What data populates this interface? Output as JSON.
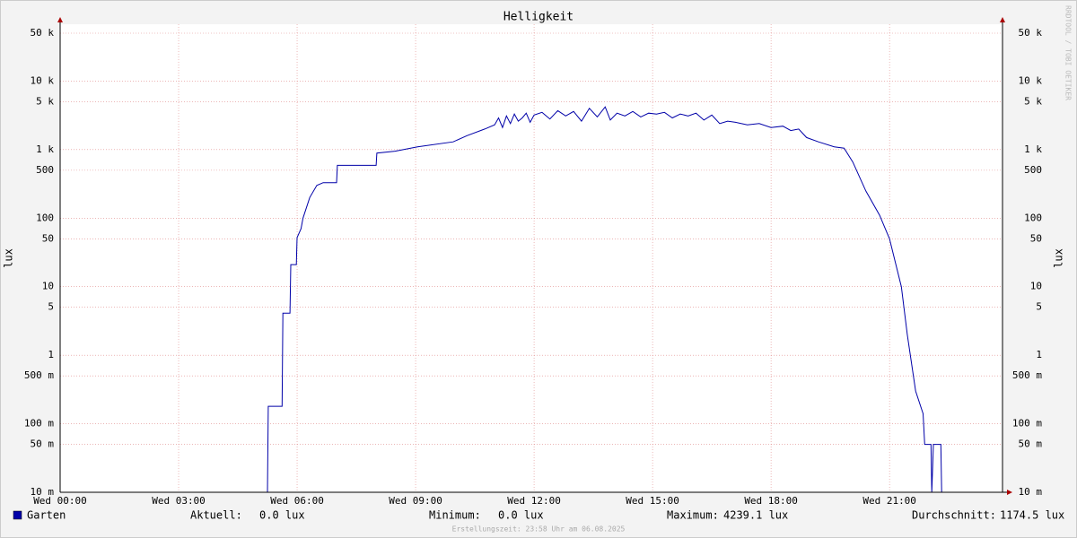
{
  "chart_data": {
    "type": "line",
    "title": "Helligkeit",
    "y_label": "lux",
    "log_scale": true,
    "grid": true,
    "watermark": "RRDTOOL / TOBI OETIKER",
    "footer": "Erstellungszeit: 23:58 Uhr am 06.08.2025",
    "xlim": [
      0,
      23.86
    ],
    "xticks": [
      {
        "value": 0,
        "label": "Wed 00:00"
      },
      {
        "value": 3,
        "label": "Wed 03:00"
      },
      {
        "value": 6,
        "label": "Wed 06:00"
      },
      {
        "value": 9,
        "label": "Wed 09:00"
      },
      {
        "value": 12,
        "label": "Wed 12:00"
      },
      {
        "value": 15,
        "label": "Wed 15:00"
      },
      {
        "value": 18,
        "label": "Wed 18:00"
      },
      {
        "value": 21,
        "label": "Wed 21:00"
      }
    ],
    "ylim": [
      0.01,
      67600
    ],
    "yticks": [
      {
        "value": 0.01,
        "label": "10 m"
      },
      {
        "value": 0.05,
        "label": "50 m"
      },
      {
        "value": 0.1,
        "label": "100 m"
      },
      {
        "value": 0.5,
        "label": "500 m"
      },
      1,
      5,
      10,
      50,
      100,
      500,
      {
        "value": 1000,
        "label": "1 k"
      },
      {
        "value": 5000,
        "label": "5 k"
      },
      {
        "value": 10000,
        "label": "10 k"
      },
      {
        "value": 50000,
        "label": "50 k"
      }
    ],
    "x": [
      0,
      5.25,
      5.27,
      5.62,
      5.64,
      5.82,
      5.84,
      5.98,
      6.0,
      6.1,
      6.15,
      6.32,
      6.5,
      6.66,
      7.0,
      7.02,
      8.0,
      8.02,
      8.48,
      9.05,
      9.95,
      10.3,
      10.75,
      11.0,
      11.1,
      11.2,
      11.3,
      11.4,
      11.5,
      11.6,
      11.7,
      11.8,
      11.9,
      12.0,
      12.2,
      12.4,
      12.6,
      12.8,
      13.0,
      13.2,
      13.4,
      13.6,
      13.8,
      13.93,
      14.1,
      14.3,
      14.5,
      14.7,
      14.9,
      15.1,
      15.3,
      15.5,
      15.7,
      15.9,
      16.1,
      16.3,
      16.5,
      16.7,
      16.9,
      17.1,
      17.4,
      17.7,
      18.0,
      18.3,
      18.5,
      18.7,
      18.9,
      19.2,
      19.6,
      19.85,
      20.07,
      20.4,
      20.75,
      21.0,
      21.3,
      21.45,
      21.66,
      21.85,
      21.89,
      21.91,
      22.05,
      22.07,
      22.11,
      22.3,
      22.32,
      23.86
    ],
    "series": [
      {
        "name": "Garten",
        "color": "#0000a8",
        "values": [
          0,
          0,
          0.18,
          0.18,
          4.1,
          4.1,
          21,
          21,
          52,
          70,
          100,
          200,
          300,
          330,
          330,
          590,
          590,
          890,
          950,
          1100,
          1300,
          1600,
          2000,
          2300,
          2900,
          2100,
          3100,
          2400,
          3300,
          2600,
          2900,
          3400,
          2500,
          3200,
          3500,
          2800,
          3700,
          3100,
          3600,
          2600,
          4000,
          3000,
          4200,
          2700,
          3400,
          3100,
          3600,
          3000,
          3400,
          3300,
          3500,
          2900,
          3300,
          3100,
          3400,
          2700,
          3200,
          2400,
          2600,
          2500,
          2300,
          2400,
          2100,
          2200,
          1900,
          2000,
          1500,
          1300,
          1100,
          1050,
          660,
          250,
          110,
          50,
          10,
          2,
          0.3,
          0.14,
          0.05,
          0.05,
          0.05,
          0,
          0.05,
          0.05,
          0,
          0
        ]
      }
    ],
    "stats": [
      {
        "label": "Aktuell:",
        "value": "0.0 lux"
      },
      {
        "label": "Minimum:",
        "value": "0.0 lux"
      },
      {
        "label": "Maximum:",
        "value": "4239.1 lux"
      },
      {
        "label": "Durchschnitt:",
        "value": "1174.5 lux"
      }
    ]
  }
}
